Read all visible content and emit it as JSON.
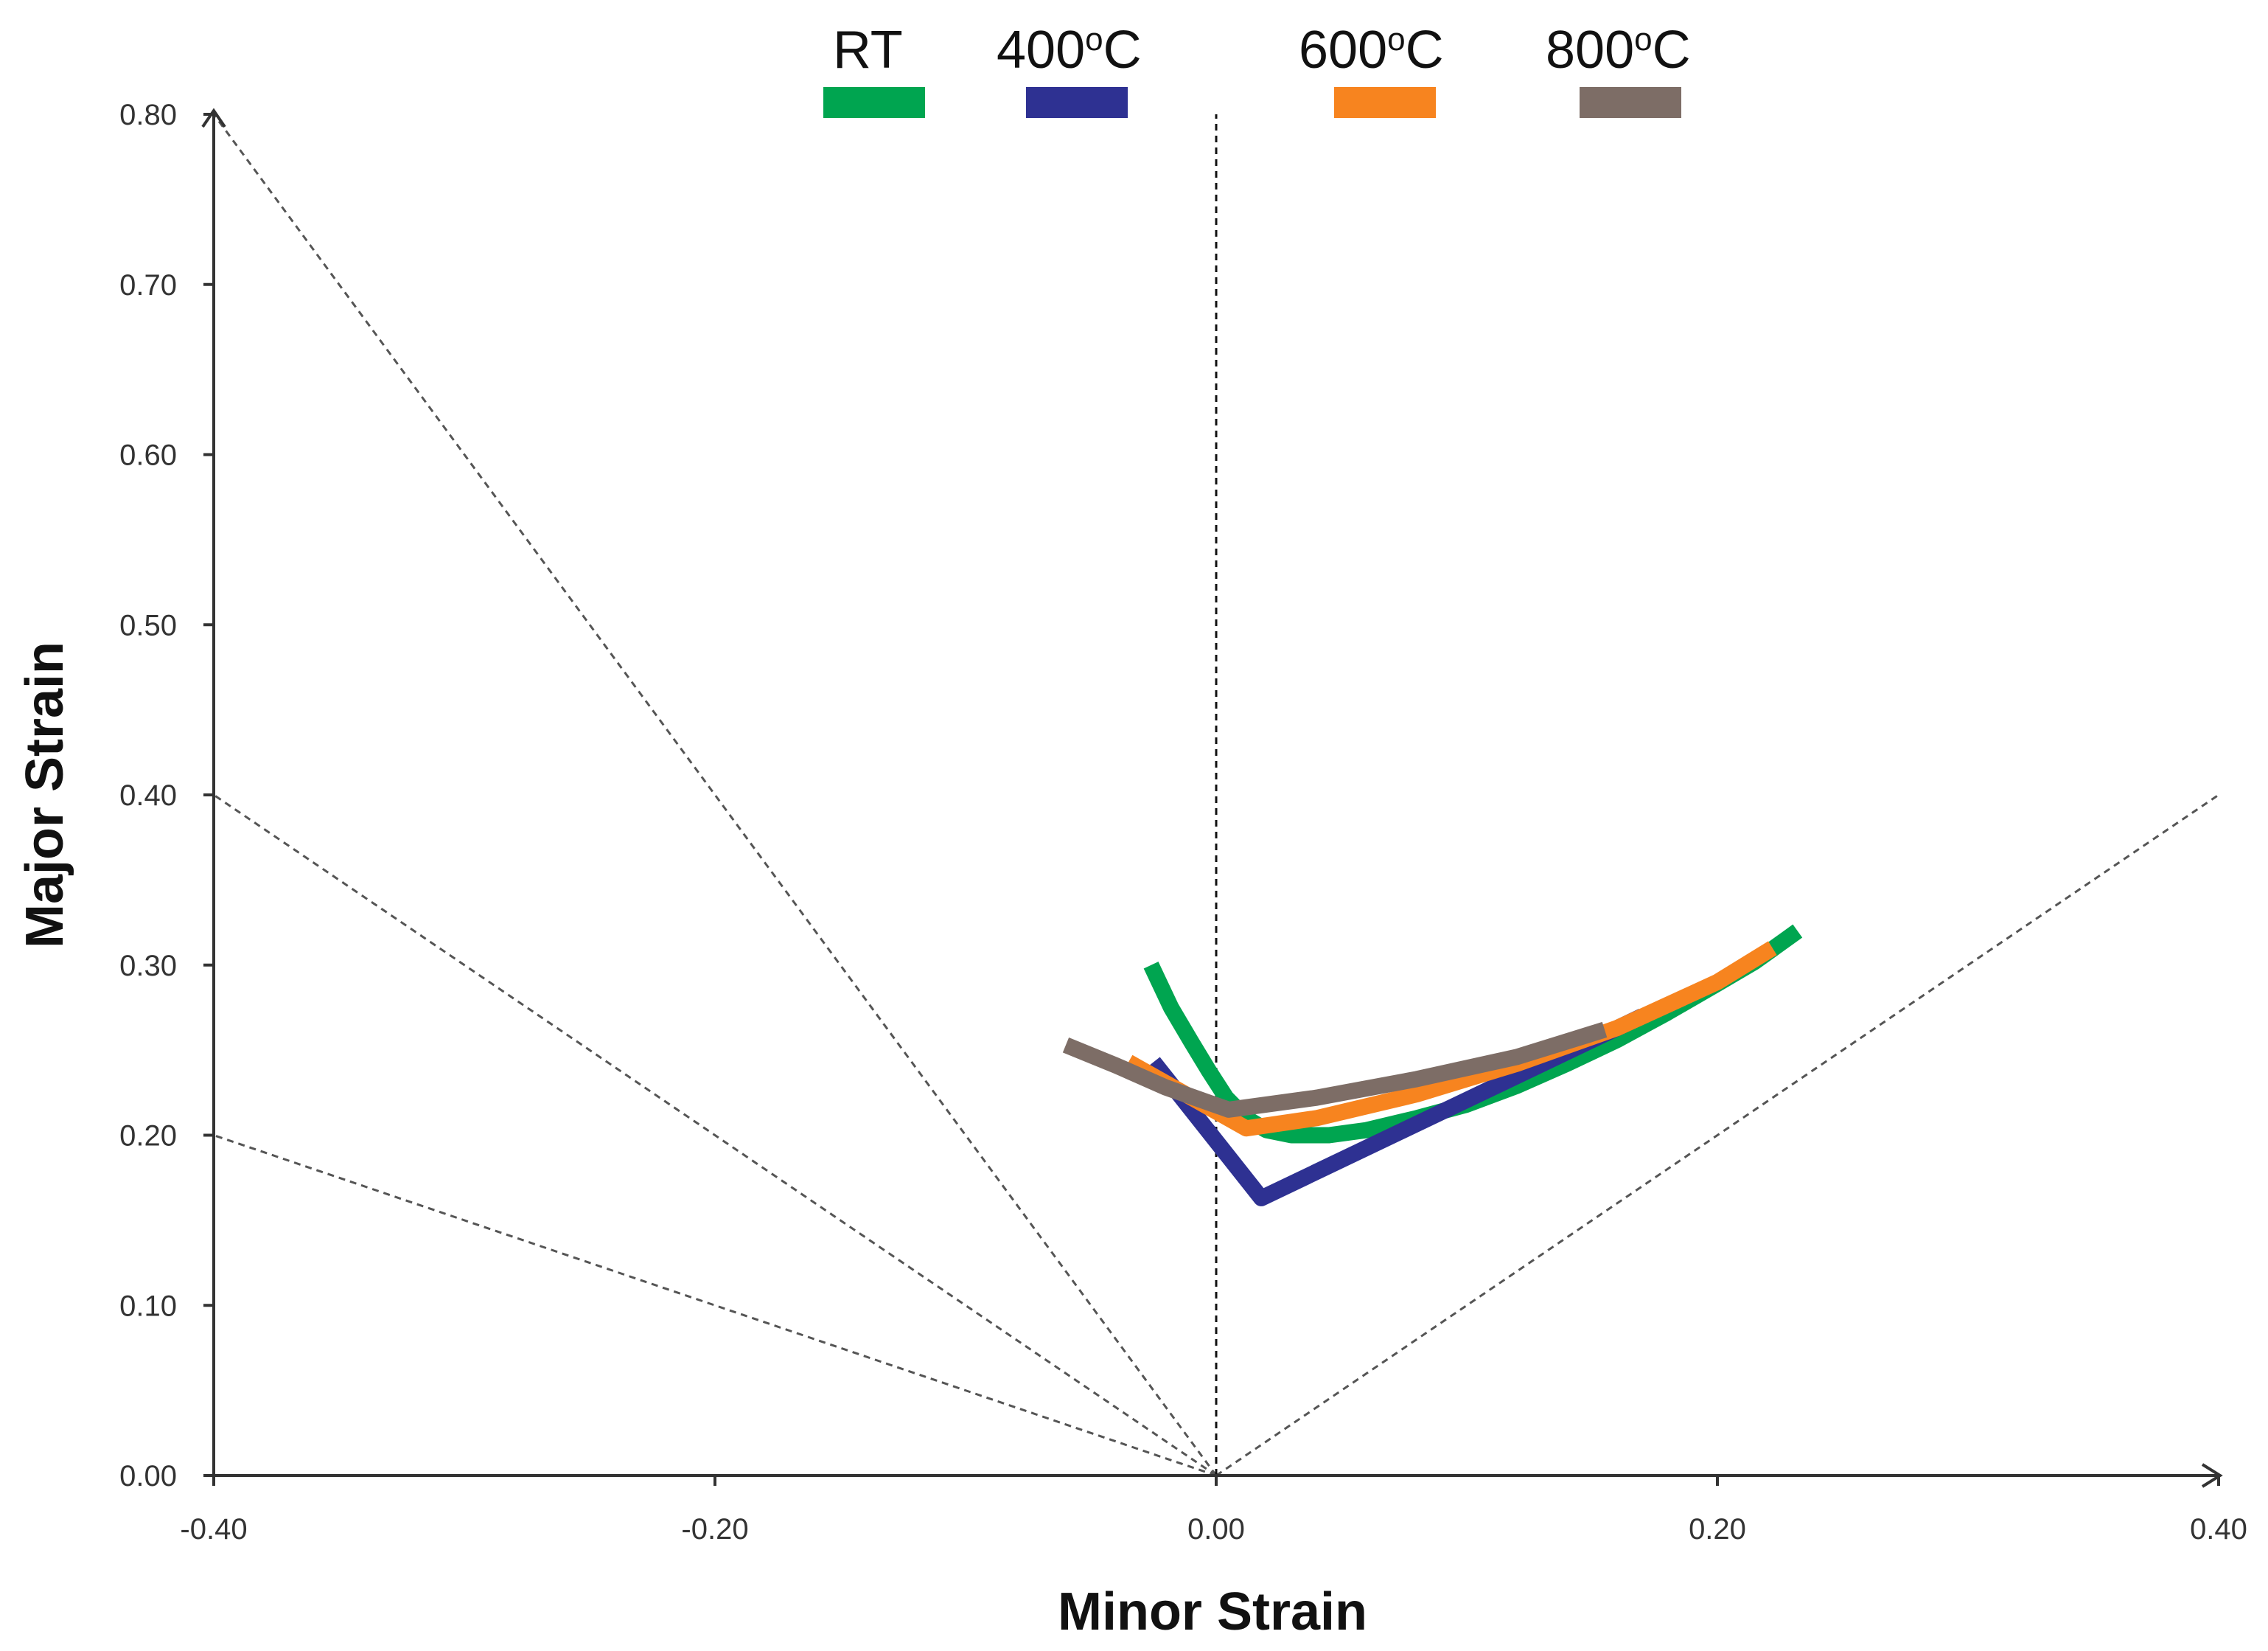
{
  "chart_data": {
    "type": "line",
    "title": "",
    "xlabel": "Minor Strain",
    "ylabel": "Major Strain",
    "xlim": [
      -0.4,
      0.4
    ],
    "ylim": [
      0.0,
      0.8
    ],
    "x_ticks": [
      "-0.40",
      "-0.20",
      "0.00",
      "0.20",
      "0.40"
    ],
    "y_ticks": [
      "0.00",
      "0.10",
      "0.20",
      "0.30",
      "0.40",
      "0.50",
      "0.60",
      "0.70",
      "0.80"
    ],
    "grid": false,
    "legend_position": "top",
    "legend": [
      {
        "base": "RT",
        "sup": "",
        "unit": "",
        "color": "#00a550"
      },
      {
        "base": "400",
        "sup": "o",
        "unit": "C",
        "color": "#2e3192"
      },
      {
        "base": "600",
        "sup": "o",
        "unit": "C",
        "color": "#f7841f"
      },
      {
        "base": "800",
        "sup": "o",
        "unit": "C",
        "color": "#7d6d66"
      }
    ],
    "reference_lines": [
      {
        "from": [
          0,
          0
        ],
        "to": [
          -0.4,
          0.8
        ]
      },
      {
        "from": [
          0,
          0
        ],
        "to": [
          -0.4,
          0.4
        ]
      },
      {
        "from": [
          0,
          0
        ],
        "to": [
          -0.4,
          0.2
        ]
      },
      {
        "from": [
          0,
          0
        ],
        "to": [
          0.4,
          0.4
        ]
      },
      {
        "from": [
          0,
          0
        ],
        "to": [
          0,
          0.8
        ]
      }
    ],
    "series": [
      {
        "name": "RT",
        "color": "#00a550",
        "x": [
          -0.026,
          -0.018,
          -0.01,
          -0.003,
          0.004,
          0.012,
          0.02,
          0.03,
          0.045,
          0.06,
          0.08,
          0.1,
          0.12,
          0.14,
          0.16,
          0.18,
          0.2,
          0.215,
          0.232
        ],
        "y": [
          0.3,
          0.275,
          0.255,
          0.238,
          0.222,
          0.21,
          0.203,
          0.2,
          0.2,
          0.203,
          0.21,
          0.218,
          0.229,
          0.242,
          0.256,
          0.272,
          0.289,
          0.302,
          0.32
        ]
      },
      {
        "name": "400°C",
        "color": "#2e3192",
        "x": [
          -0.025,
          0.018,
          0.17
        ],
        "y": [
          0.243,
          0.163,
          0.27
        ]
      },
      {
        "name": "600°C",
        "color": "#f7841f",
        "x": [
          -0.035,
          0.012,
          0.04,
          0.08,
          0.12,
          0.16,
          0.2,
          0.222
        ],
        "y": [
          0.243,
          0.204,
          0.21,
          0.224,
          0.242,
          0.263,
          0.29,
          0.31
        ]
      },
      {
        "name": "800°C",
        "color": "#7d6d66",
        "x": [
          -0.06,
          -0.04,
          -0.02,
          0.005,
          0.04,
          0.08,
          0.12,
          0.155
        ],
        "y": [
          0.253,
          0.241,
          0.228,
          0.215,
          0.222,
          0.233,
          0.246,
          0.262
        ]
      }
    ]
  }
}
